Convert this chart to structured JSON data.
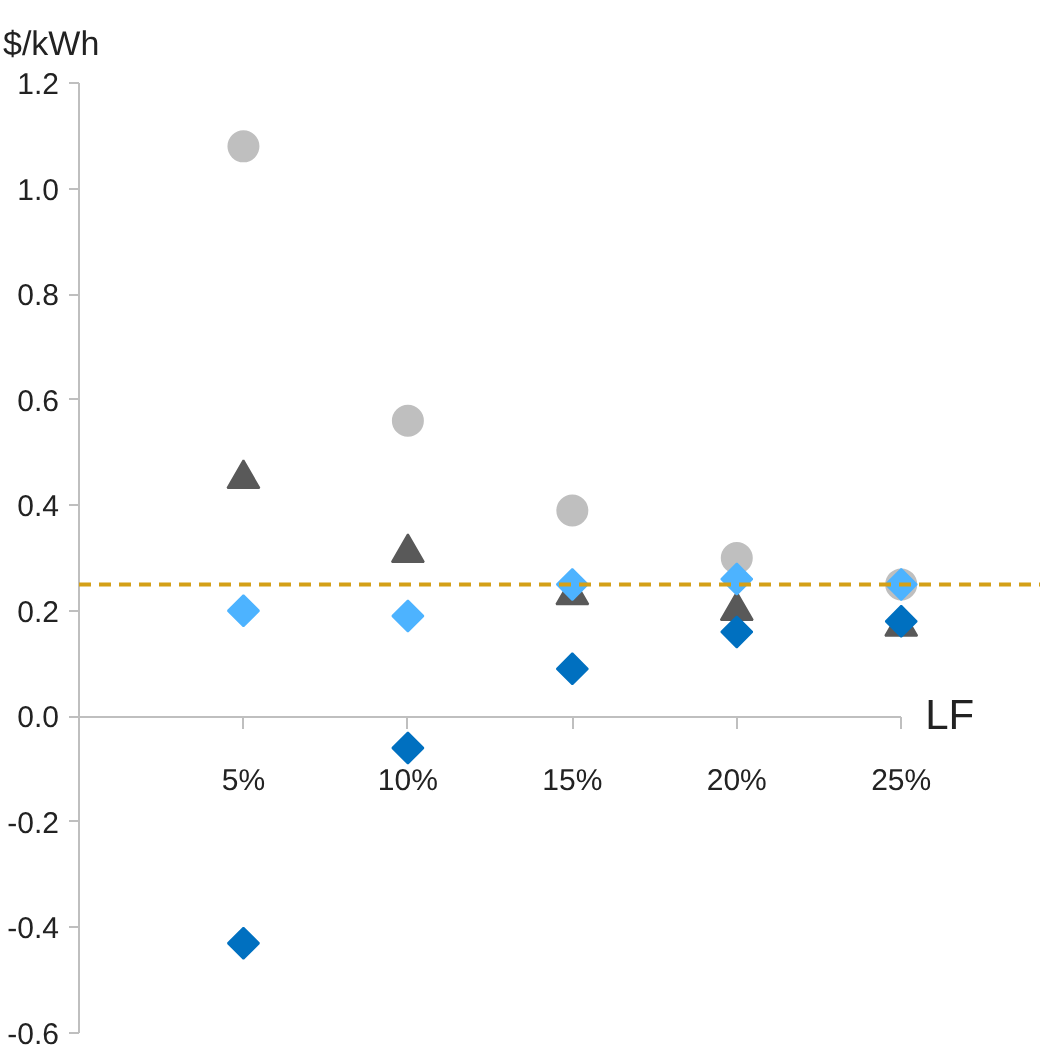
{
  "chart_data": {
    "type": "scatter",
    "xlabel": "LF",
    "ylabel": "$/kWh",
    "x": [
      5,
      10,
      15,
      20,
      25
    ],
    "xlim": [
      0,
      25
    ],
    "xticks": [
      {
        "value": 5,
        "label": "5%"
      },
      {
        "value": 10,
        "label": "10%"
      },
      {
        "value": 15,
        "label": "15%"
      },
      {
        "value": 20,
        "label": "20%"
      },
      {
        "value": 25,
        "label": "25%"
      }
    ],
    "ylim": [
      -0.6,
      1.2
    ],
    "yticks": [
      {
        "value": -0.6,
        "label": "-0.6"
      },
      {
        "value": -0.4,
        "label": "-0.4"
      },
      {
        "value": -0.2,
        "label": "-0.2"
      },
      {
        "value": 0,
        "label": "0.0"
      },
      0.2,
      0.4,
      0.6,
      0.8,
      {
        "value": 1,
        "label": "1.0"
      },
      1.2
    ],
    "grid": false,
    "series": [
      {
        "color": "#bfbfbf",
        "marker": "circle",
        "values": [
          1.08,
          0.56,
          0.39,
          0.3,
          0.25
        ]
      },
      {
        "color": "#595959",
        "marker": "triangle",
        "values": [
          0.45,
          0.31,
          0.23,
          0.2,
          0.17
        ]
      },
      {
        "color": "#0070c0",
        "marker": "diamond",
        "values": [
          -0.43,
          -0.06,
          0.09,
          0.16,
          0.18
        ]
      },
      {
        "color": "#4db3ff",
        "marker": "diamond",
        "values": [
          0.2,
          0.19,
          0.25,
          0.26,
          0.25
        ]
      }
    ],
    "ref_lines": [
      {
        "axis": "y",
        "value": 0.25,
        "color": "#d4a017",
        "line_style": "dashed"
      }
    ]
  }
}
